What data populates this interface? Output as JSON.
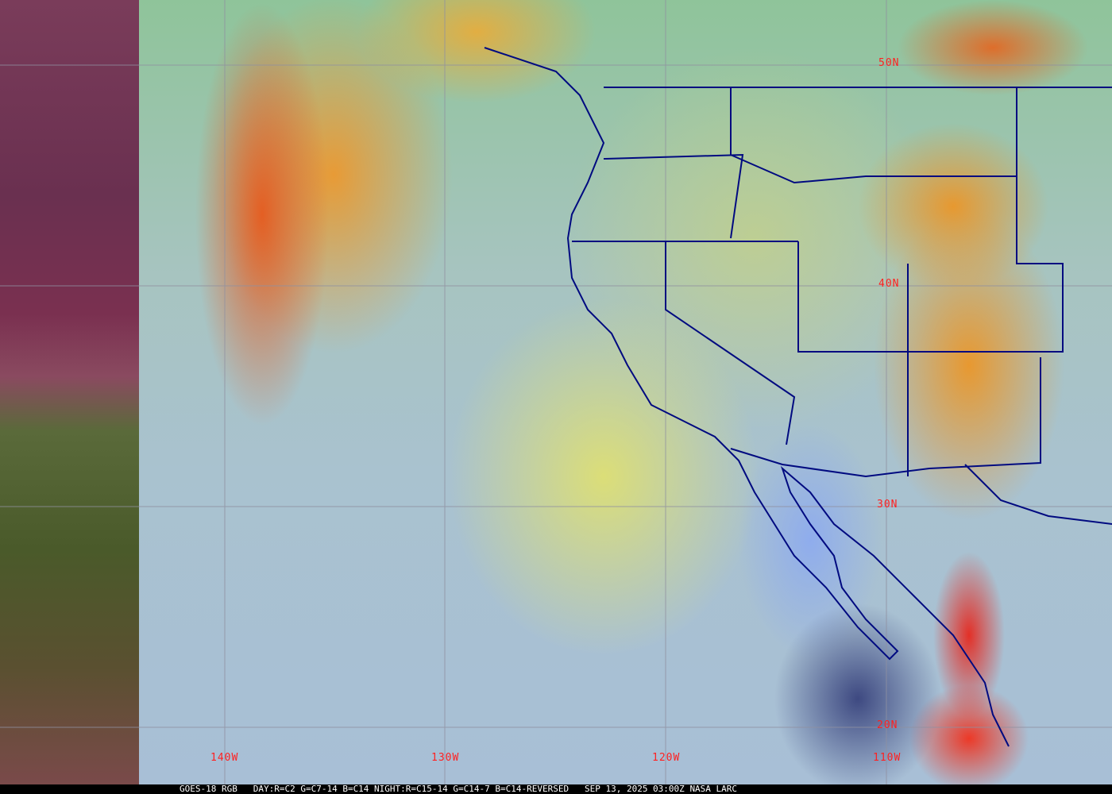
{
  "map": {
    "lat_labels": [
      "50N",
      "40N",
      "30N",
      "20N"
    ],
    "lon_labels": [
      "140W",
      "130W",
      "120W",
      "110W"
    ],
    "colors": {
      "grid": "#9090a0",
      "borders": "#000a80",
      "labels": "#ff2020"
    }
  },
  "caption": {
    "satellite": "GOES-18 RGB",
    "product": "DAY:R=C2 G=C7-14 B=C14 NIGHT:R=C15-14 G=C14-7 B=C14-REVERSED",
    "datetime": "SEP 13, 2025 03:00Z",
    "source": "NASA LARC"
  }
}
